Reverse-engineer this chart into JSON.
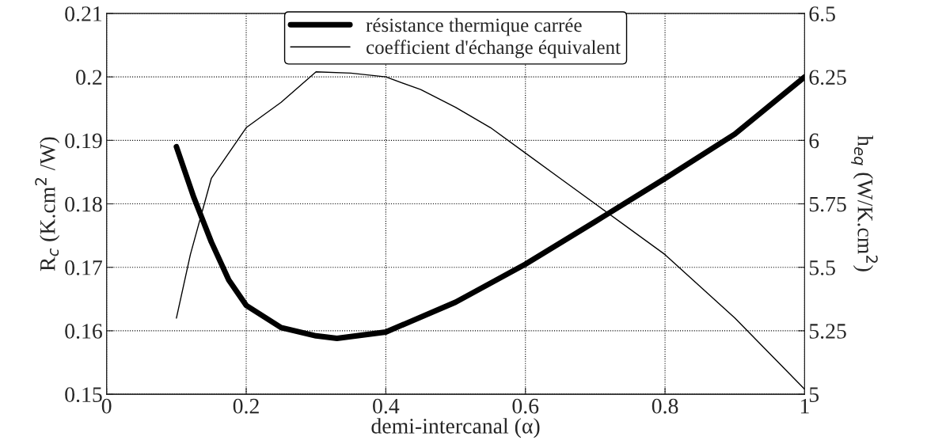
{
  "chart_data": {
    "type": "line",
    "xlabel": "demi-intercanal (α)",
    "ylabel": "R$_{c}$ (K.cm$^{2}$ /W)",
    "y2label": "h$_{eq}$ (W/K.cm$^{2}$)",
    "xlim": [
      0,
      1
    ],
    "xticks": [
      0,
      0.2,
      0.4,
      0.6,
      0.8,
      1
    ],
    "ylim": [
      0.15,
      0.21
    ],
    "yticks": [
      0.15,
      0.16,
      0.17,
      0.18,
      0.19,
      0.2,
      0.21
    ],
    "y2lim": [
      5,
      6.5
    ],
    "y2ticks": [
      5,
      5.25,
      5.5,
      5.75,
      6,
      6.25,
      6.5
    ],
    "grid": true,
    "legend": "top",
    "line_style": "solid",
    "marker": "none",
    "series": [
      {
        "name": "résistance thermique carrée",
        "color": "#000000",
        "x": [
          0.1,
          0.125,
          0.15,
          0.175,
          0.2,
          0.25,
          0.3,
          0.33,
          0.4,
          0.5,
          0.6,
          0.7,
          0.8,
          0.9,
          1.0
        ],
        "values": [
          0.189,
          0.181,
          0.174,
          0.168,
          0.164,
          0.1605,
          0.1592,
          0.1588,
          0.1598,
          0.1645,
          0.1705,
          0.1772,
          0.184,
          0.191,
          0.2
        ]
      },
      {
        "name": "coefficient d'échange équivalent",
        "color": "#000000",
        "axis": "y2",
        "x": [
          0.1,
          0.12,
          0.15,
          0.2,
          0.25,
          0.3,
          0.35,
          0.4,
          0.45,
          0.5,
          0.55,
          0.6,
          0.65,
          0.7,
          0.8,
          0.9,
          1.0
        ],
        "values": [
          5.3,
          5.55,
          5.85,
          6.05,
          6.15,
          6.27,
          6.265,
          6.25,
          6.2,
          6.13,
          6.05,
          5.95,
          5.85,
          5.75,
          5.55,
          5.3,
          5.02
        ]
      }
    ]
  }
}
